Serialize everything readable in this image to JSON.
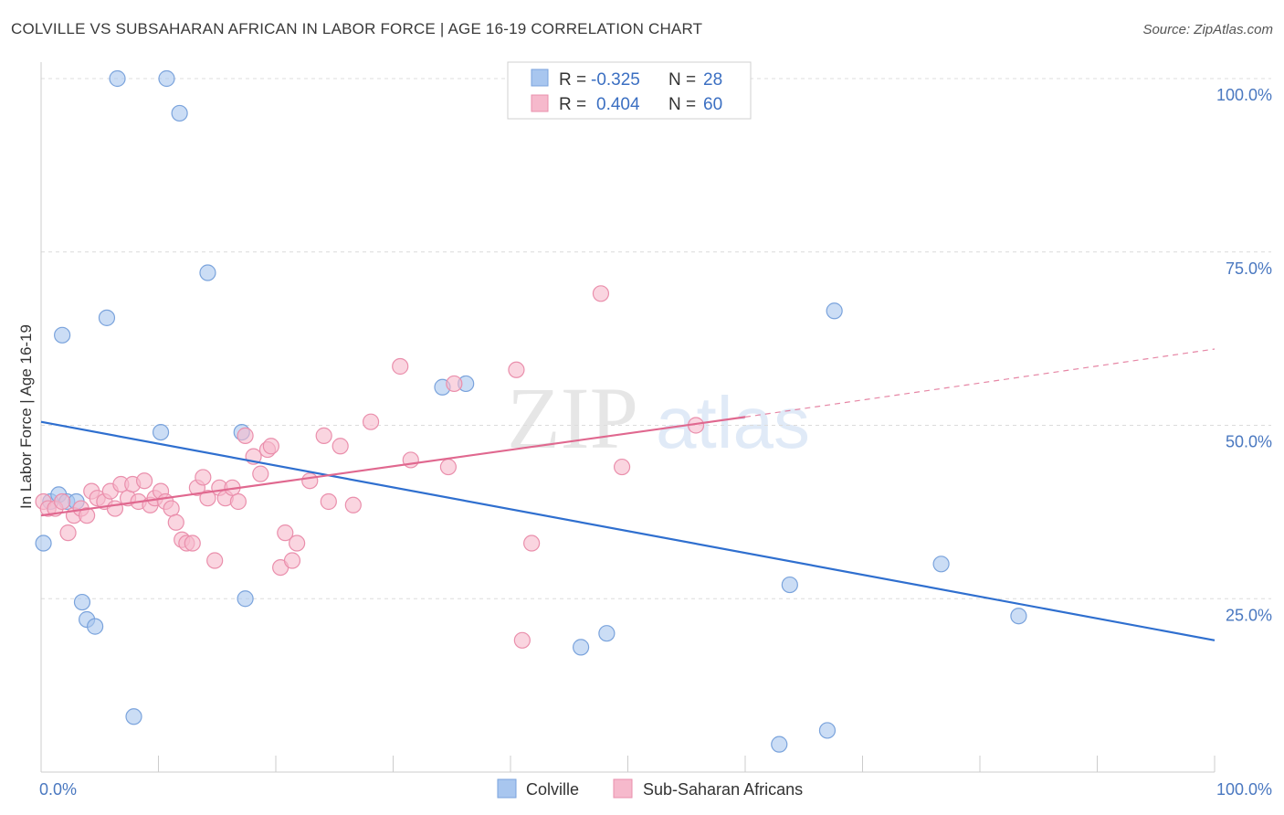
{
  "header": {
    "title": "COLVILLE VS SUBSAHARAN AFRICAN IN LABOR FORCE | AGE 16-19 CORRELATION CHART",
    "source": "Source: ZipAtlas.com"
  },
  "watermark": {
    "zip": "ZIP",
    "atlas": "atlas"
  },
  "chart_data": {
    "type": "scatter",
    "title": "COLVILLE VS SUBSAHARAN AFRICAN IN LABOR FORCE | AGE 16-19 CORRELATION CHART",
    "xlabel": "",
    "ylabel": "In Labor Force | Age 16-19",
    "xlim": [
      0,
      100
    ],
    "ylim": [
      0,
      100
    ],
    "x_tick_labels": [
      "0.0%",
      "100.0%"
    ],
    "y_ticks": [
      25,
      50,
      75,
      100
    ],
    "y_tick_labels": [
      "25.0%",
      "50.0%",
      "75.0%",
      "100.0%"
    ],
    "grid": true,
    "legend_position": "top-center",
    "series": [
      {
        "name": "Colville",
        "color": "#a8c6ef",
        "stroke": "#7aa3dc",
        "line_color": "#2f6fcf",
        "R_label": "R =",
        "R": "-0.325",
        "N_label": "N =",
        "N": "28",
        "trend": {
          "x": [
            0,
            100
          ],
          "y": [
            50.5,
            19
          ]
        },
        "points": [
          {
            "x": 6.5,
            "y": 100
          },
          {
            "x": 10.7,
            "y": 100
          },
          {
            "x": 11.8,
            "y": 95
          },
          {
            "x": 14.2,
            "y": 72
          },
          {
            "x": 5.6,
            "y": 65.5
          },
          {
            "x": 1.8,
            "y": 63
          },
          {
            "x": 67.6,
            "y": 66.5
          },
          {
            "x": 34.2,
            "y": 55.5
          },
          {
            "x": 36.2,
            "y": 56
          },
          {
            "x": 10.2,
            "y": 49
          },
          {
            "x": 17.1,
            "y": 49
          },
          {
            "x": 0.8,
            "y": 39
          },
          {
            "x": 1.5,
            "y": 40
          },
          {
            "x": 2.2,
            "y": 39
          },
          {
            "x": 3.0,
            "y": 39
          },
          {
            "x": 0.2,
            "y": 33
          },
          {
            "x": 3.5,
            "y": 24.5
          },
          {
            "x": 3.9,
            "y": 22
          },
          {
            "x": 4.6,
            "y": 21
          },
          {
            "x": 17.4,
            "y": 25
          },
          {
            "x": 46.0,
            "y": 18
          },
          {
            "x": 48.2,
            "y": 20
          },
          {
            "x": 63.8,
            "y": 27
          },
          {
            "x": 76.7,
            "y": 30
          },
          {
            "x": 83.3,
            "y": 22.5
          },
          {
            "x": 7.9,
            "y": 8
          },
          {
            "x": 62.9,
            "y": 4
          },
          {
            "x": 67.0,
            "y": 6
          }
        ]
      },
      {
        "name": "Sub-Saharan Africans",
        "color": "#f6b9cc",
        "stroke": "#ea8fac",
        "line_color": "#e0688f",
        "R_label": "R =",
        "R": "0.404",
        "N_label": "N =",
        "N": "60",
        "trend": {
          "x": [
            0,
            60
          ],
          "y": [
            37,
            51.2
          ]
        },
        "trend_dashed": {
          "x": [
            60,
            100
          ],
          "y": [
            51.2,
            61
          ]
        },
        "points": [
          {
            "x": 0.2,
            "y": 39
          },
          {
            "x": 0.6,
            "y": 38
          },
          {
            "x": 1.2,
            "y": 38
          },
          {
            "x": 1.8,
            "y": 39
          },
          {
            "x": 2.3,
            "y": 34.5
          },
          {
            "x": 2.8,
            "y": 37
          },
          {
            "x": 3.4,
            "y": 38
          },
          {
            "x": 3.9,
            "y": 37
          },
          {
            "x": 4.3,
            "y": 40.5
          },
          {
            "x": 4.8,
            "y": 39.5
          },
          {
            "x": 5.4,
            "y": 39
          },
          {
            "x": 5.9,
            "y": 40.5
          },
          {
            "x": 6.3,
            "y": 38
          },
          {
            "x": 6.8,
            "y": 41.5
          },
          {
            "x": 7.4,
            "y": 39.5
          },
          {
            "x": 7.8,
            "y": 41.5
          },
          {
            "x": 8.3,
            "y": 39
          },
          {
            "x": 8.8,
            "y": 42
          },
          {
            "x": 9.3,
            "y": 38.5
          },
          {
            "x": 9.7,
            "y": 39.5
          },
          {
            "x": 10.2,
            "y": 40.5
          },
          {
            "x": 10.6,
            "y": 39
          },
          {
            "x": 11.1,
            "y": 38
          },
          {
            "x": 11.5,
            "y": 36
          },
          {
            "x": 12.0,
            "y": 33.5
          },
          {
            "x": 12.4,
            "y": 33
          },
          {
            "x": 12.9,
            "y": 33
          },
          {
            "x": 13.3,
            "y": 41
          },
          {
            "x": 13.8,
            "y": 42.5
          },
          {
            "x": 14.2,
            "y": 39.5
          },
          {
            "x": 14.8,
            "y": 30.5
          },
          {
            "x": 15.2,
            "y": 41
          },
          {
            "x": 15.7,
            "y": 39.5
          },
          {
            "x": 16.3,
            "y": 41
          },
          {
            "x": 16.8,
            "y": 39
          },
          {
            "x": 17.4,
            "y": 48.5
          },
          {
            "x": 18.1,
            "y": 45.5
          },
          {
            "x": 18.7,
            "y": 43
          },
          {
            "x": 19.3,
            "y": 46.5
          },
          {
            "x": 19.6,
            "y": 47
          },
          {
            "x": 20.4,
            "y": 29.5
          },
          {
            "x": 20.8,
            "y": 34.5
          },
          {
            "x": 21.4,
            "y": 30.5
          },
          {
            "x": 21.8,
            "y": 33
          },
          {
            "x": 22.9,
            "y": 42
          },
          {
            "x": 24.1,
            "y": 48.5
          },
          {
            "x": 24.5,
            "y": 39
          },
          {
            "x": 25.5,
            "y": 47
          },
          {
            "x": 26.6,
            "y": 38.5
          },
          {
            "x": 28.1,
            "y": 50.5
          },
          {
            "x": 30.6,
            "y": 58.5
          },
          {
            "x": 31.5,
            "y": 45
          },
          {
            "x": 34.7,
            "y": 44
          },
          {
            "x": 35.2,
            "y": 56
          },
          {
            "x": 40.5,
            "y": 58
          },
          {
            "x": 41.0,
            "y": 19
          },
          {
            "x": 41.8,
            "y": 33
          },
          {
            "x": 47.7,
            "y": 69
          },
          {
            "x": 49.5,
            "y": 44
          },
          {
            "x": 55.8,
            "y": 50
          }
        ]
      }
    ]
  }
}
